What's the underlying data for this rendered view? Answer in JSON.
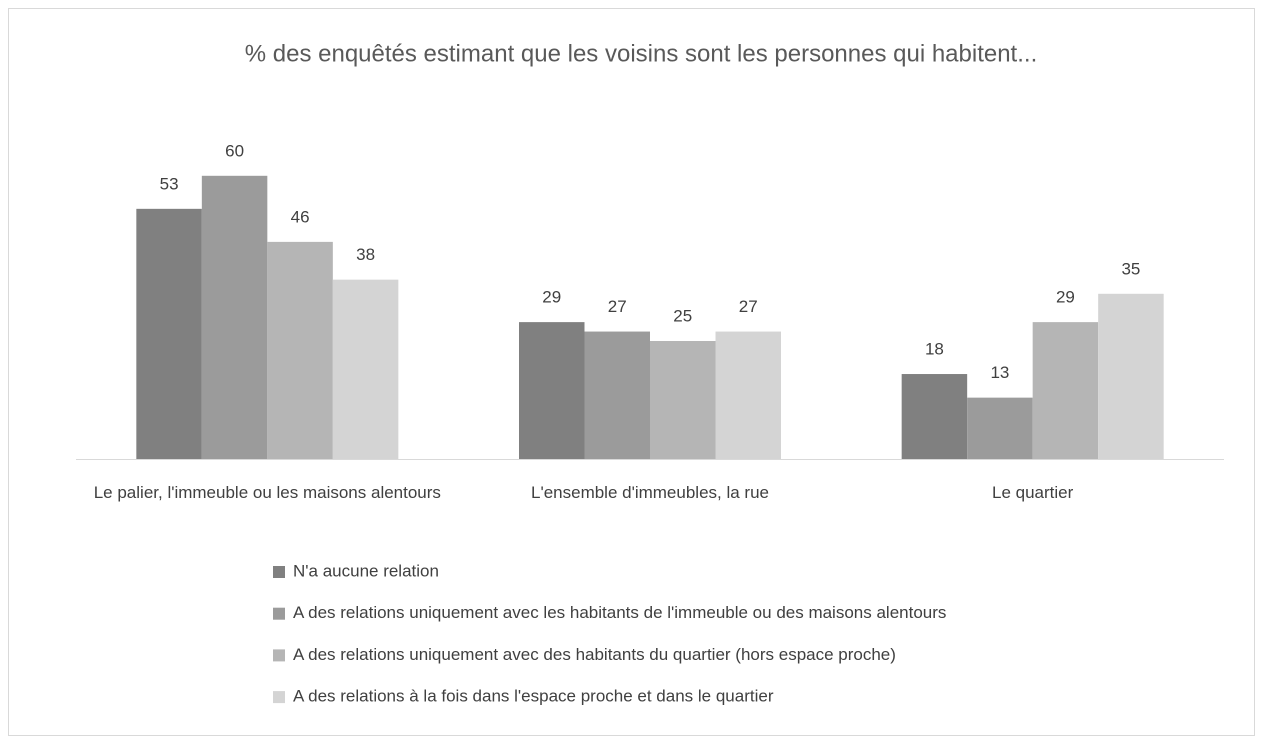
{
  "chart_data": {
    "type": "bar",
    "title": "% des enquêtés estimant que les voisins sont les personnes qui habitent...",
    "categories": [
      "Le palier, l'immeuble ou les maisons alentours",
      "L'ensemble d'immeubles, la rue",
      "Le quartier"
    ],
    "series": [
      {
        "name": "N'a aucune relation",
        "color": "#808080",
        "values": [
          53,
          29,
          18
        ]
      },
      {
        "name": "A des relations uniquement avec les habitants de l'immeuble ou des maisons alentours",
        "color": "#9b9b9b",
        "values": [
          60,
          27,
          13
        ]
      },
      {
        "name": "A des relations uniquement avec des habitants du quartier (hors espace proche)",
        "color": "#b5b5b5",
        "values": [
          46,
          25,
          29
        ]
      },
      {
        "name": "A des relations à la fois dans l'espace proche et dans le quartier",
        "color": "#d4d4d4",
        "values": [
          38,
          27,
          35
        ]
      }
    ],
    "legend": "bottom"
  }
}
